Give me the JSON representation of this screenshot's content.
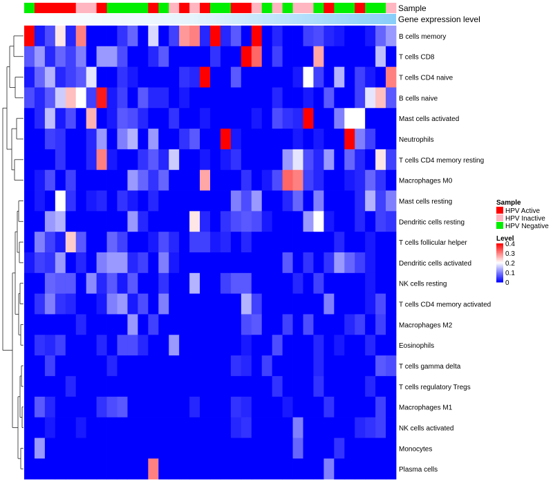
{
  "chart_data": {
    "type": "heatmap",
    "title": "",
    "annotation_labels": [
      "Sample",
      "Gene expression level"
    ],
    "sample_groups": [
      "Negative",
      "Active",
      "Active",
      "Active",
      "Active",
      "Inactive",
      "Inactive",
      "Active",
      "Negative",
      "Negative",
      "Negative",
      "Negative",
      "Active",
      "Negative",
      "Inactive",
      "Active",
      "Inactive",
      "Active",
      "Negative",
      "Negative",
      "Active",
      "Active",
      "Inactive",
      "Negative",
      "Inactive",
      "Negative",
      "Inactive",
      "Inactive",
      "Negative",
      "Active",
      "Negative",
      "Negative",
      "Active",
      "Negative",
      "Negative",
      "Inactive"
    ],
    "rows": [
      "B cells memory",
      "T cells CD8",
      "T cells CD4 naive",
      "B cells naive",
      "Mast cells activated",
      "Neutrophils",
      "T cells CD4 memory resting",
      "Macrophages M0",
      "Mast cells resting",
      "Dendritic cells resting",
      "T cells follicular helper",
      "Dendritic cells activated",
      "NK cells resting",
      "T cells CD4 memory activated",
      "Macrophages M2",
      "Eosinophils",
      "T cells gamma delta",
      "T cells regulatory  Tregs",
      "Macrophages M1",
      "NK cells activated",
      "Monocytes",
      "Plasma cells"
    ],
    "values": [
      [
        0.4,
        0.02,
        0.06,
        0.22,
        0.03,
        0.3,
        0.0,
        0.0,
        0.0,
        0.04,
        0.08,
        0.0,
        0.17,
        0.0,
        0.05,
        0.28,
        0.3,
        0.03,
        0.4,
        0.03,
        0.07,
        0.0,
        0.4,
        0.0,
        0.03,
        0.0,
        0.0,
        0.05,
        0.06,
        0.03,
        0.02,
        0.0,
        0.0,
        0.02,
        0.08,
        0.12
      ],
      [
        0.07,
        0.12,
        0.03,
        0.08,
        0.05,
        0.1,
        0.0,
        0.12,
        0.12,
        0.06,
        0.0,
        0.0,
        0.03,
        0.07,
        0.0,
        0.0,
        0.0,
        0.0,
        0.04,
        0.0,
        0.0,
        0.4,
        0.32,
        0.0,
        0.05,
        0.0,
        0.0,
        0.0,
        0.27,
        0.0,
        0.0,
        0.0,
        0.0,
        0.0,
        0.15,
        0.0
      ],
      [
        0.02,
        0.08,
        0.14,
        0.03,
        0.05,
        0.07,
        0.18,
        0.0,
        0.0,
        0.04,
        0.02,
        0.0,
        0.0,
        0.0,
        0.0,
        0.04,
        0.03,
        0.4,
        0.0,
        0.0,
        0.07,
        0.0,
        0.0,
        0.0,
        0.0,
        0.0,
        0.02,
        0.2,
        0.05,
        0.0,
        0.14,
        0.0,
        0.05,
        0.02,
        0.0,
        0.3
      ],
      [
        0.06,
        0.03,
        0.07,
        0.16,
        0.25,
        0.2,
        0.05,
        0.38,
        0.02,
        0.05,
        0.0,
        0.07,
        0.03,
        0.03,
        0.0,
        0.02,
        0.0,
        0.0,
        0.0,
        0.0,
        0.0,
        0.0,
        0.0,
        0.0,
        0.03,
        0.0,
        0.0,
        0.02,
        0.0,
        0.07,
        0.0,
        0.0,
        0.05,
        0.18,
        0.25,
        0.07
      ],
      [
        0.0,
        0.03,
        0.15,
        0.02,
        0.06,
        0.0,
        0.26,
        0.0,
        0.02,
        0.07,
        0.06,
        0.03,
        0.0,
        0.0,
        0.04,
        0.0,
        0.0,
        0.02,
        0.0,
        0.0,
        0.0,
        0.0,
        0.02,
        0.0,
        0.06,
        0.04,
        0.03,
        0.4,
        0.0,
        0.0,
        0.1,
        0.2,
        0.2,
        0.0,
        0.0,
        0.0
      ],
      [
        0.0,
        0.0,
        0.05,
        0.04,
        0.0,
        0.0,
        0.03,
        0.12,
        0.0,
        0.1,
        0.14,
        0.0,
        0.12,
        0.0,
        0.0,
        0.04,
        0.07,
        0.0,
        0.0,
        0.4,
        0.02,
        0.0,
        0.0,
        0.0,
        0.0,
        0.0,
        0.02,
        0.0,
        0.02,
        0.0,
        0.0,
        0.4,
        0.1,
        0.05,
        0.0,
        0.0
      ],
      [
        0.0,
        0.0,
        0.0,
        0.04,
        0.0,
        0.0,
        0.03,
        0.3,
        0.02,
        0.0,
        0.0,
        0.04,
        0.07,
        0.03,
        0.16,
        0.0,
        0.0,
        0.02,
        0.0,
        0.02,
        0.04,
        0.0,
        0.0,
        0.0,
        0.0,
        0.12,
        0.18,
        0.06,
        0.03,
        0.12,
        0.0,
        0.08,
        0.03,
        0.0,
        0.22,
        0.05
      ],
      [
        0.0,
        0.02,
        0.06,
        0.0,
        0.05,
        0.0,
        0.0,
        0.0,
        0.0,
        0.0,
        0.12,
        0.08,
        0.04,
        0.08,
        0.0,
        0.0,
        0.0,
        0.27,
        0.0,
        0.0,
        0.0,
        0.04,
        0.0,
        0.02,
        0.06,
        0.32,
        0.3,
        0.05,
        0.03,
        0.0,
        0.0,
        0.02,
        0.03,
        0.08,
        0.04,
        0.0
      ],
      [
        0.0,
        0.02,
        0.0,
        0.2,
        0.04,
        0.0,
        0.02,
        0.03,
        0.0,
        0.04,
        0.02,
        0.0,
        0.03,
        0.0,
        0.0,
        0.0,
        0.0,
        0.0,
        0.0,
        0.0,
        0.1,
        0.06,
        0.12,
        0.0,
        0.0,
        0.03,
        0.08,
        0.0,
        0.1,
        0.0,
        0.0,
        0.0,
        0.03,
        0.14,
        0.05,
        0.1
      ],
      [
        0.0,
        0.0,
        0.12,
        0.14,
        0.0,
        0.0,
        0.0,
        0.0,
        0.0,
        0.0,
        0.12,
        0.03,
        0.0,
        0.0,
        0.0,
        0.0,
        0.22,
        0.03,
        0.0,
        0.04,
        0.06,
        0.07,
        0.06,
        0.02,
        0.0,
        0.0,
        0.0,
        0.12,
        0.2,
        0.02,
        0.0,
        0.0,
        0.03,
        0.0,
        0.05,
        0.04
      ],
      [
        0.0,
        0.1,
        0.05,
        0.02,
        0.24,
        0.07,
        0.0,
        0.0,
        0.08,
        0.05,
        0.0,
        0.0,
        0.02,
        0.06,
        0.03,
        0.0,
        0.05,
        0.05,
        0.02,
        0.03,
        0.0,
        0.03,
        0.0,
        0.0,
        0.0,
        0.0,
        0.0,
        0.0,
        0.0,
        0.0,
        0.03,
        0.0,
        0.0,
        0.02,
        0.0,
        0.0
      ],
      [
        0.02,
        0.05,
        0.04,
        0.12,
        0.0,
        0.03,
        0.0,
        0.1,
        0.12,
        0.12,
        0.03,
        0.05,
        0.0,
        0.1,
        0.02,
        0.0,
        0.0,
        0.0,
        0.0,
        0.0,
        0.0,
        0.0,
        0.0,
        0.0,
        0.0,
        0.07,
        0.0,
        0.04,
        0.0,
        0.04,
        0.12,
        0.08,
        0.05,
        0.02,
        0.0,
        0.0
      ],
      [
        0.0,
        0.0,
        0.08,
        0.07,
        0.07,
        0.0,
        0.11,
        0.03,
        0.07,
        0.02,
        0.07,
        0.0,
        0.0,
        0.04,
        0.0,
        0.0,
        0.14,
        0.0,
        0.0,
        0.05,
        0.07,
        0.07,
        0.0,
        0.0,
        0.0,
        0.0,
        0.03,
        0.0,
        0.05,
        0.0,
        0.0,
        0.0,
        0.0,
        0.02,
        0.0,
        0.0
      ],
      [
        0.0,
        0.04,
        0.1,
        0.04,
        0.03,
        0.0,
        0.0,
        0.02,
        0.1,
        0.12,
        0.02,
        0.06,
        0.0,
        0.1,
        0.0,
        0.0,
        0.0,
        0.0,
        0.0,
        0.0,
        0.0,
        0.14,
        0.05,
        0.0,
        0.0,
        0.0,
        0.0,
        0.0,
        0.0,
        0.1,
        0.0,
        0.0,
        0.0,
        0.02,
        0.06,
        0.0
      ],
      [
        0.0,
        0.0,
        0.0,
        0.0,
        0.0,
        0.03,
        0.0,
        0.0,
        0.0,
        0.0,
        0.12,
        0.0,
        0.05,
        0.0,
        0.0,
        0.0,
        0.0,
        0.0,
        0.0,
        0.0,
        0.0,
        0.06,
        0.07,
        0.0,
        0.0,
        0.05,
        0.0,
        0.06,
        0.0,
        0.0,
        0.0,
        0.03,
        0.05,
        0.0,
        0.05,
        0.0
      ],
      [
        0.0,
        0.04,
        0.03,
        0.05,
        0.0,
        0.0,
        0.0,
        0.03,
        0.0,
        0.06,
        0.06,
        0.03,
        0.0,
        0.0,
        0.12,
        0.0,
        0.0,
        0.0,
        0.0,
        0.0,
        0.0,
        0.02,
        0.0,
        0.0,
        0.06,
        0.0,
        0.0,
        0.0,
        0.03,
        0.0,
        0.02,
        0.0,
        0.0,
        0.03,
        0.0,
        0.0
      ],
      [
        0.0,
        0.0,
        0.05,
        0.0,
        0.0,
        0.0,
        0.0,
        0.0,
        0.03,
        0.0,
        0.0,
        0.0,
        0.0,
        0.0,
        0.0,
        0.0,
        0.0,
        0.0,
        0.0,
        0.0,
        0.04,
        0.03,
        0.0,
        0.05,
        0.0,
        0.0,
        0.0,
        0.0,
        0.03,
        0.0,
        0.0,
        0.0,
        0.0,
        0.0,
        0.07,
        0.06
      ],
      [
        0.0,
        0.0,
        0.0,
        0.0,
        0.03,
        0.0,
        0.0,
        0.0,
        0.0,
        0.0,
        0.0,
        0.0,
        0.0,
        0.0,
        0.0,
        0.0,
        0.0,
        0.0,
        0.0,
        0.0,
        0.0,
        0.0,
        0.0,
        0.0,
        0.04,
        0.0,
        0.0,
        0.0,
        0.04,
        0.0,
        0.0,
        0.0,
        0.0,
        0.03,
        0.0,
        0.0
      ],
      [
        0.0,
        0.07,
        0.03,
        0.0,
        0.0,
        0.0,
        0.0,
        0.04,
        0.06,
        0.07,
        0.0,
        0.0,
        0.0,
        0.0,
        0.0,
        0.0,
        0.03,
        0.0,
        0.0,
        0.0,
        0.04,
        0.03,
        0.0,
        0.0,
        0.0,
        0.02,
        0.0,
        0.0,
        0.0,
        0.04,
        0.0,
        0.0,
        0.0,
        0.0,
        0.05,
        0.0
      ],
      [
        0.0,
        0.0,
        0.02,
        0.0,
        0.0,
        0.02,
        0.0,
        0.0,
        0.0,
        0.0,
        0.0,
        0.0,
        0.0,
        0.0,
        0.0,
        0.0,
        0.0,
        0.0,
        0.0,
        0.0,
        0.03,
        0.04,
        0.0,
        0.0,
        0.0,
        0.0,
        0.1,
        0.0,
        0.0,
        0.0,
        0.0,
        0.0,
        0.03,
        0.04,
        0.05,
        0.0
      ],
      [
        0.0,
        0.12,
        0.0,
        0.0,
        0.0,
        0.0,
        0.0,
        0.0,
        0.0,
        0.0,
        0.0,
        0.0,
        0.0,
        0.0,
        0.0,
        0.0,
        0.0,
        0.0,
        0.0,
        0.0,
        0.0,
        0.0,
        0.0,
        0.0,
        0.0,
        0.0,
        0.08,
        0.0,
        0.0,
        0.0,
        0.04,
        0.0,
        0.0,
        0.0,
        0.0,
        0.0
      ],
      [
        0.0,
        0.0,
        0.0,
        0.0,
        0.0,
        0.0,
        0.0,
        0.0,
        0.0,
        0.0,
        0.0,
        0.0,
        0.3,
        0.0,
        0.0,
        0.0,
        0.0,
        0.0,
        0.0,
        0.0,
        0.0,
        0.0,
        0.0,
        0.0,
        0.0,
        0.0,
        0.0,
        0.0,
        0.0,
        0.1,
        0.0,
        0.0,
        0.0,
        0.0,
        0.0,
        0.0
      ]
    ],
    "legend": {
      "sample_title": "Sample",
      "sample_items": [
        {
          "label": "HPV Active",
          "color": "#ff0000"
        },
        {
          "label": "HPV Inactive",
          "color": "#ffb6c1"
        },
        {
          "label": "HPV Negative",
          "color": "#00ee00"
        }
      ],
      "level_title": "Level",
      "level_ticks": [
        "0.4",
        "0.3",
        "0.2",
        "0.1",
        "0"
      ],
      "level_range": [
        0,
        0.4
      ]
    },
    "colors": {
      "low": "#0000ff",
      "mid": "#ffffff",
      "high": "#ff0000",
      "expr_band": "#87cefa"
    }
  }
}
